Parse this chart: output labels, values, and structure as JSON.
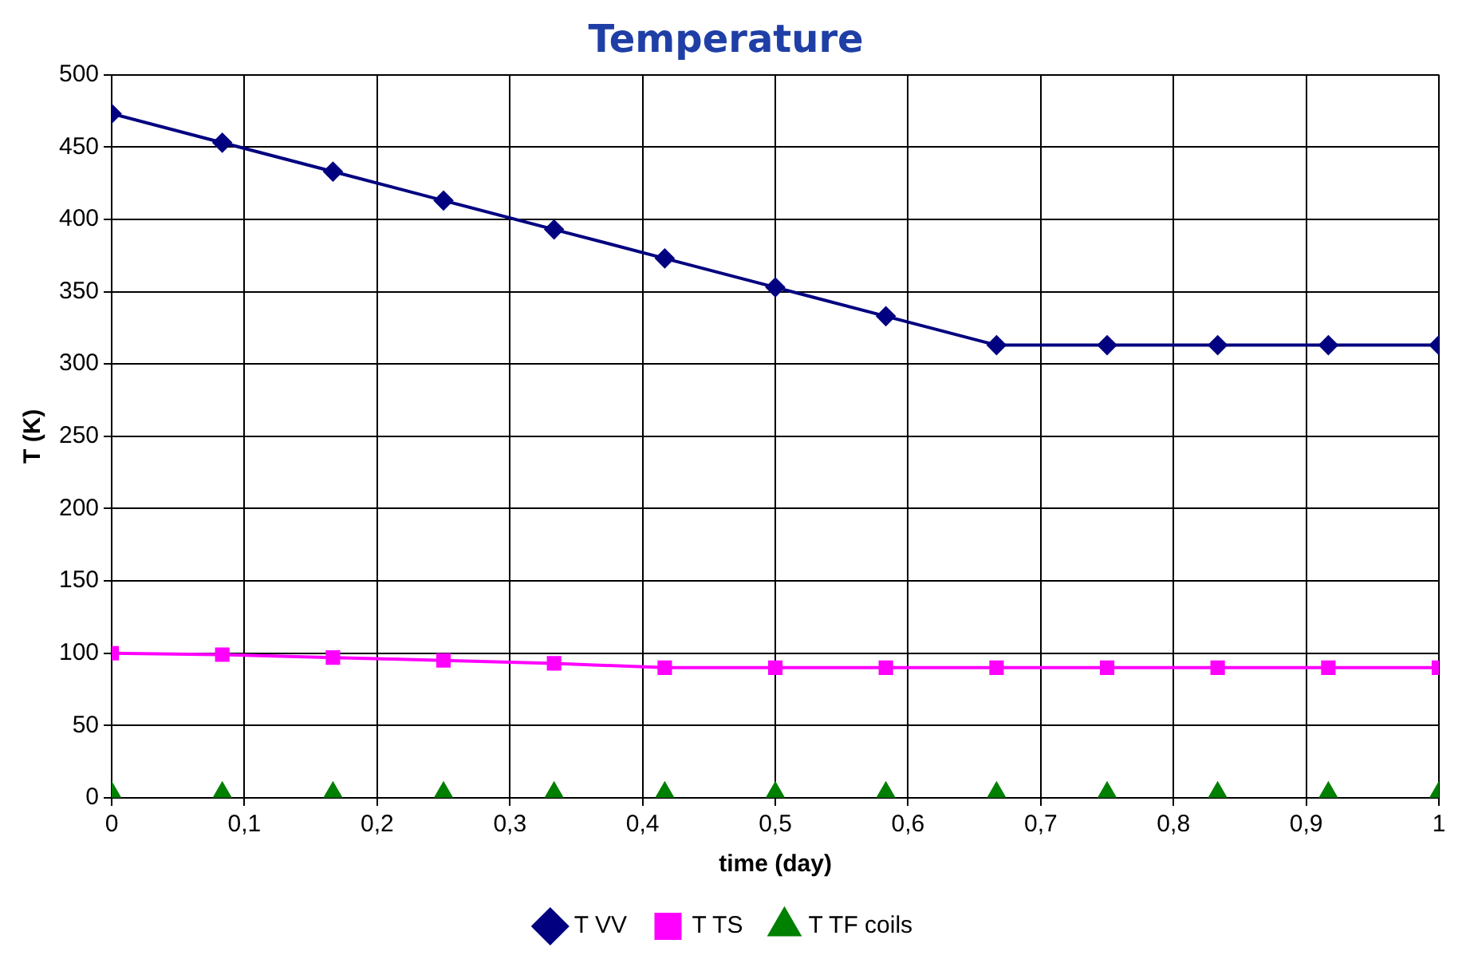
{
  "chart_data": {
    "type": "line",
    "title": "Temperature",
    "xlabel": "time (day)",
    "ylabel": "T (K)",
    "x": [
      0,
      0.0833,
      0.1667,
      0.25,
      0.3333,
      0.4167,
      0.5,
      0.5833,
      0.6667,
      0.75,
      0.8333,
      0.9167,
      1
    ],
    "series": [
      {
        "name": "T VV",
        "color": "#000080",
        "marker": "diamond",
        "values": [
          473,
          453,
          433,
          413,
          393,
          373,
          353,
          333,
          313,
          313,
          313,
          313,
          313
        ]
      },
      {
        "name": "T TS",
        "color": "#ff00ff",
        "marker": "square",
        "values": [
          100,
          99,
          97,
          95,
          93,
          90,
          90,
          90,
          90,
          90,
          90,
          90,
          90
        ]
      },
      {
        "name": "T TF coils",
        "type": "scatter",
        "color": "#008000",
        "marker": "triangle",
        "values": [
          4,
          4,
          4,
          4,
          4,
          4,
          4,
          4,
          4,
          4,
          4,
          4,
          4
        ]
      }
    ],
    "xlim": [
      0,
      1
    ],
    "xticks": [
      0,
      {
        "value": 0.1,
        "label": "0,1"
      },
      {
        "value": 0.2,
        "label": "0,2"
      },
      {
        "value": 0.3,
        "label": "0,3"
      },
      {
        "value": 0.4,
        "label": "0,4"
      },
      {
        "value": 0.5,
        "label": "0,5"
      },
      {
        "value": 0.6,
        "label": "0,6"
      },
      {
        "value": 0.7,
        "label": "0,7"
      },
      {
        "value": 0.8,
        "label": "0,8"
      },
      {
        "value": 0.9,
        "label": "0,9"
      },
      1
    ],
    "ylim": [
      0,
      500
    ],
    "yticks": [
      0,
      50,
      100,
      150,
      200,
      250,
      300,
      350,
      400,
      450,
      500
    ],
    "grid": true,
    "legend": "bottom"
  }
}
